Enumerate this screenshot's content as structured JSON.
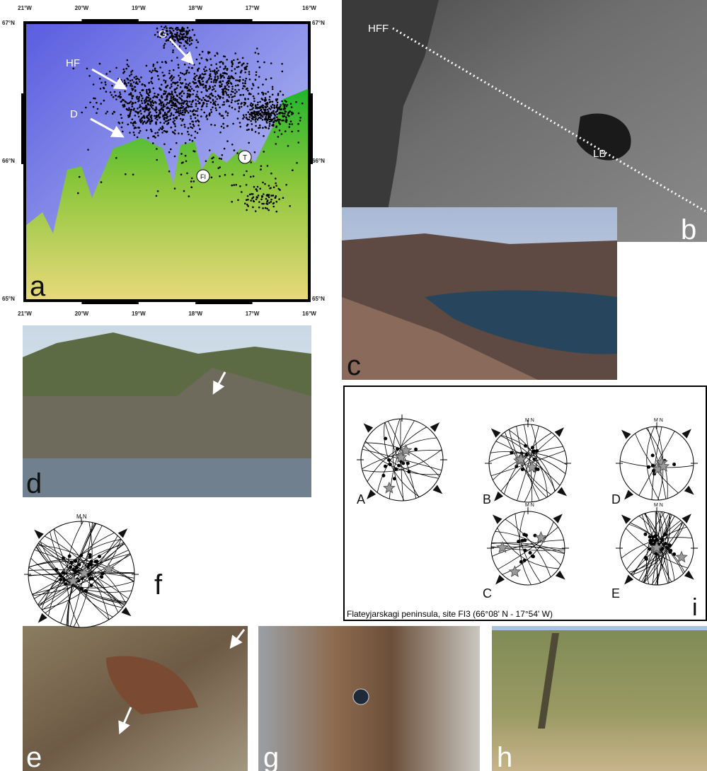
{
  "panels": {
    "a": {
      "label": "a",
      "lon_ticks": [
        "21°W",
        "20°W",
        "19°W",
        "18°W",
        "17°W",
        "16°W"
      ],
      "lat_ticks": [
        "67°N",
        "66°N",
        "65°N"
      ],
      "annotations": [
        "G",
        "HF",
        "D",
        "FI",
        "T"
      ]
    },
    "b": {
      "label": "b",
      "annotations": [
        "HFF",
        "LB"
      ]
    },
    "c": {
      "label": "c"
    },
    "d": {
      "label": "d"
    },
    "e": {
      "label": "e"
    },
    "f": {
      "label": "f",
      "north": "M N"
    },
    "g": {
      "label": "g"
    },
    "h": {
      "label": "h"
    },
    "i": {
      "label": "i",
      "stereonets": [
        "A",
        "B",
        "C",
        "D",
        "E"
      ],
      "north": "M N",
      "caption": "Flateyjarskagi peninsula, site FI3 (66°08' N - 17°54' W)"
    }
  }
}
